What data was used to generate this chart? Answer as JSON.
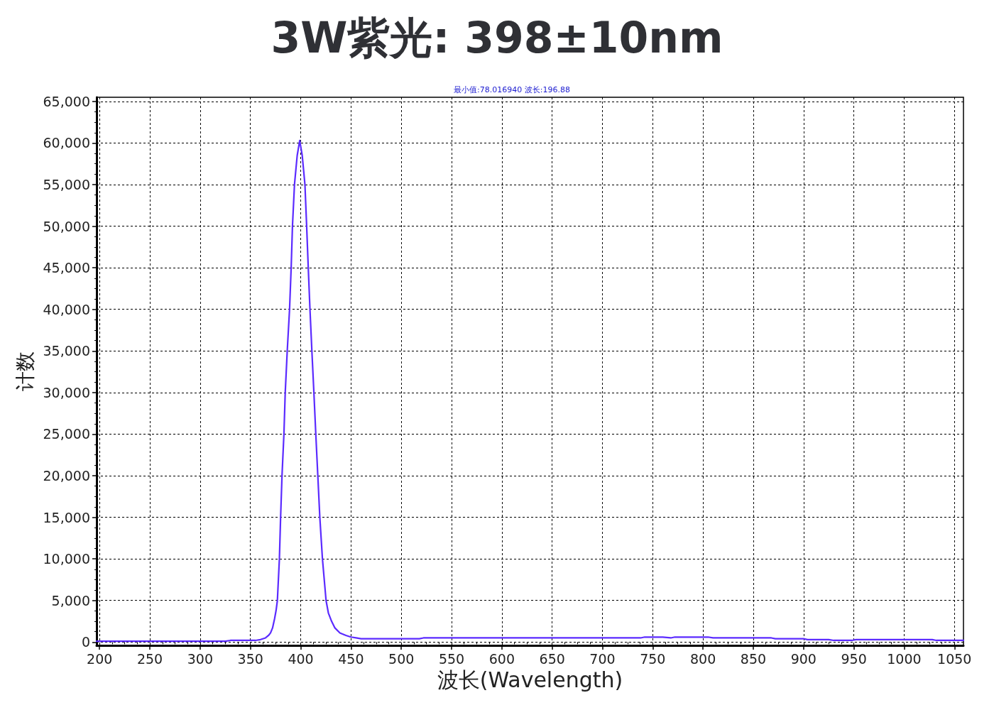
{
  "chart_data": {
    "type": "line",
    "title": "3W紫光: 398±10nm",
    "subtitle": "最小值:78.016940 波长:196.88",
    "xlabel": "波长(Wavelength)",
    "ylabel": "计数",
    "color": "#5b2bff",
    "marker": "none",
    "line_style": "solid",
    "grid": true,
    "x": [
      197,
      250,
      300,
      325,
      330,
      350,
      355,
      360,
      365,
      368,
      370,
      372,
      374,
      375.5,
      376.8,
      378.8,
      380,
      381.4,
      383.3,
      384.6,
      386.6,
      388.9,
      390.5,
      391.8,
      393.8,
      396.5,
      399,
      401.5,
      404.2,
      405.9,
      407.5,
      409.2,
      411.1,
      413.1,
      415,
      417,
      419,
      421.6,
      425.2,
      427.5,
      430.7,
      434,
      439,
      445,
      450,
      455,
      460,
      518,
      522,
      738,
      742,
      760,
      768,
      772,
      805,
      810,
      868,
      872,
      900,
      904,
      925,
      930,
      948,
      952,
      1028,
      1032,
      1059
    ],
    "values": [
      100,
      100,
      100,
      100,
      200,
      200,
      200,
      300,
      500,
      800,
      1100,
      1700,
      2800,
      3800,
      5000,
      10000,
      15000,
      20000,
      25000,
      30000,
      35000,
      40000,
      45000,
      50000,
      55000,
      58500,
      60300,
      58500,
      55000,
      50000,
      45000,
      40000,
      35000,
      30000,
      25000,
      20000,
      15000,
      10000,
      5000,
      3500,
      2500,
      1700,
      1100,
      800,
      600,
      500,
      400,
      400,
      500,
      500,
      600,
      600,
      500,
      600,
      600,
      500,
      500,
      400,
      400,
      300,
      300,
      200,
      200,
      300,
      300,
      200,
      200
    ],
    "xlim": [
      197,
      1059
    ],
    "xticks": [
      200,
      250,
      300,
      350,
      400,
      450,
      500,
      550,
      600,
      650,
      700,
      750,
      800,
      850,
      900,
      950,
      1000,
      1050
    ],
    "ylim": [
      -400,
      65500
    ],
    "yticks": [
      0,
      {
        "value": 5000,
        "label": "5,000"
      },
      {
        "value": 10000,
        "label": "10,000"
      },
      {
        "value": 15000,
        "label": "15,000"
      },
      {
        "value": 20000,
        "label": "20,000"
      },
      {
        "value": 25000,
        "label": "25,000"
      },
      {
        "value": 30000,
        "label": "30,000"
      },
      {
        "value": 35000,
        "label": "35,000"
      },
      {
        "value": 40000,
        "label": "40,000"
      },
      {
        "value": 45000,
        "label": "45,000"
      },
      {
        "value": 50000,
        "label": "50,000"
      },
      {
        "value": 55000,
        "label": "55,000"
      },
      {
        "value": 60000,
        "label": "60,000"
      },
      {
        "value": 65000,
        "label": "65,000"
      }
    ]
  }
}
